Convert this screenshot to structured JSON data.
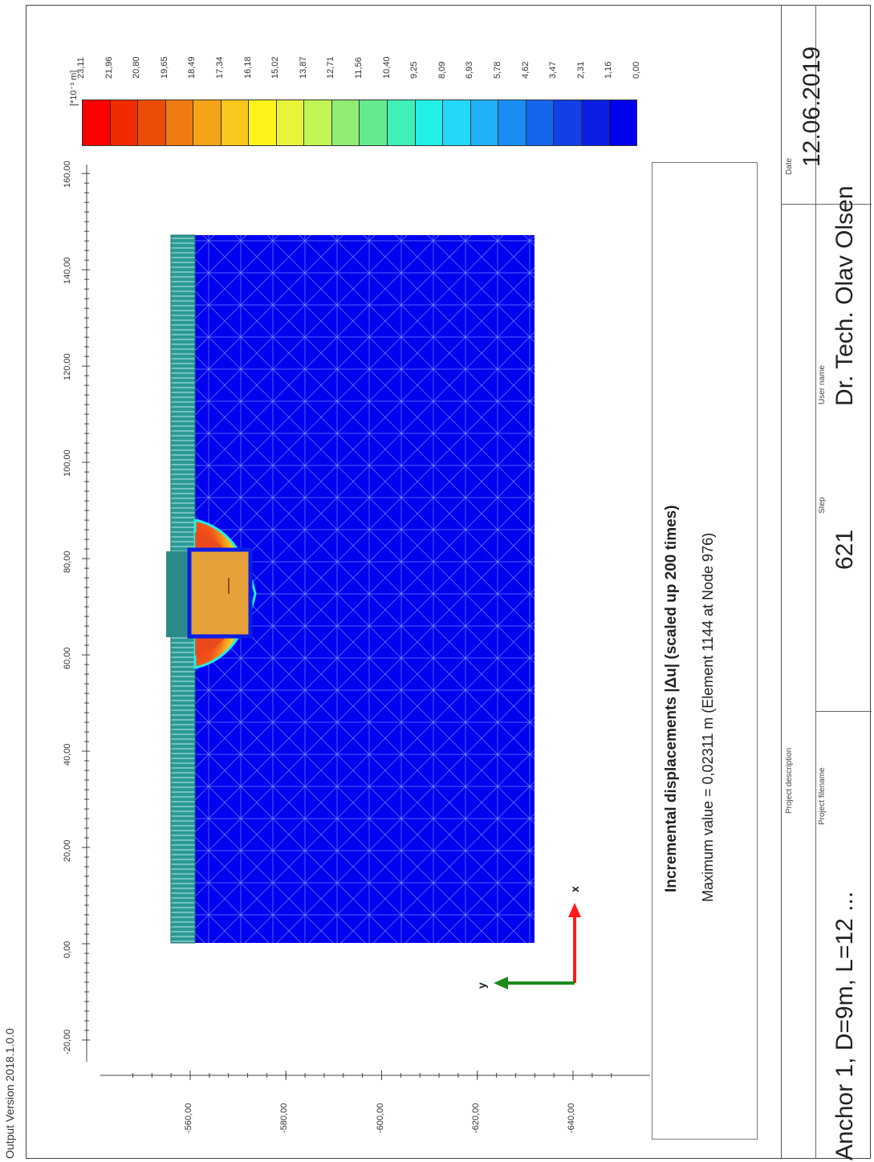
{
  "header": {
    "version": "Output Version 2018.1.0.0"
  },
  "axes": {
    "x_ticks": [
      "-20,00",
      "0,00",
      "20,00",
      "40,00",
      "60,00",
      "80,00",
      "100,00",
      "120,00",
      "140,00",
      "160,00"
    ],
    "y_ticks": [
      "-560,00",
      "-580,00",
      "-600,00",
      "-620,00",
      "-640,00"
    ],
    "x_range": [
      -20,
      160
    ],
    "y_range": [
      -560,
      -640
    ]
  },
  "legend": {
    "unit": "[*10⁻³ m]",
    "values": [
      "23,11",
      "21,96",
      "20,80",
      "19,65",
      "18,49",
      "17,34",
      "16,18",
      "15,02",
      "13,87",
      "12,71",
      "11,56",
      "10,40",
      "9,25",
      "8,09",
      "6,93",
      "5,78",
      "4,62",
      "3,47",
      "2,31",
      "1,16",
      "0,00"
    ],
    "colors": [
      "#ff0000",
      "#f22a00",
      "#ec4b08",
      "#f07a12",
      "#f5a417",
      "#f8c81c",
      "#fff31a",
      "#e8f53a",
      "#c0f553",
      "#8fee73",
      "#64ea8c",
      "#3ff0b8",
      "#20f0e6",
      "#22d8f8",
      "#1fb2f6",
      "#1a8df3",
      "#1566ee",
      "#1040e6",
      "#0b1ee4",
      "#0000ee"
    ]
  },
  "results": {
    "title": "Incremental displacements |Δu| (scaled up 200 times)",
    "max_value": "Maximum value = 0,02311 m (Element 1144 at Node 976)"
  },
  "coordinate_axes": {
    "x_label": "x",
    "y_label": "y"
  },
  "title_block": {
    "date_label": "Date",
    "date_value": "12.06.2019",
    "user_label": "User name",
    "user_value": "Dr. Tech. Olav Olsen",
    "step_label": "Step",
    "step_value": "621",
    "filename_label": "Project filename",
    "filename_value": "Anchor 1, D=9m, L=12 ...",
    "description_label": "Project description"
  }
}
